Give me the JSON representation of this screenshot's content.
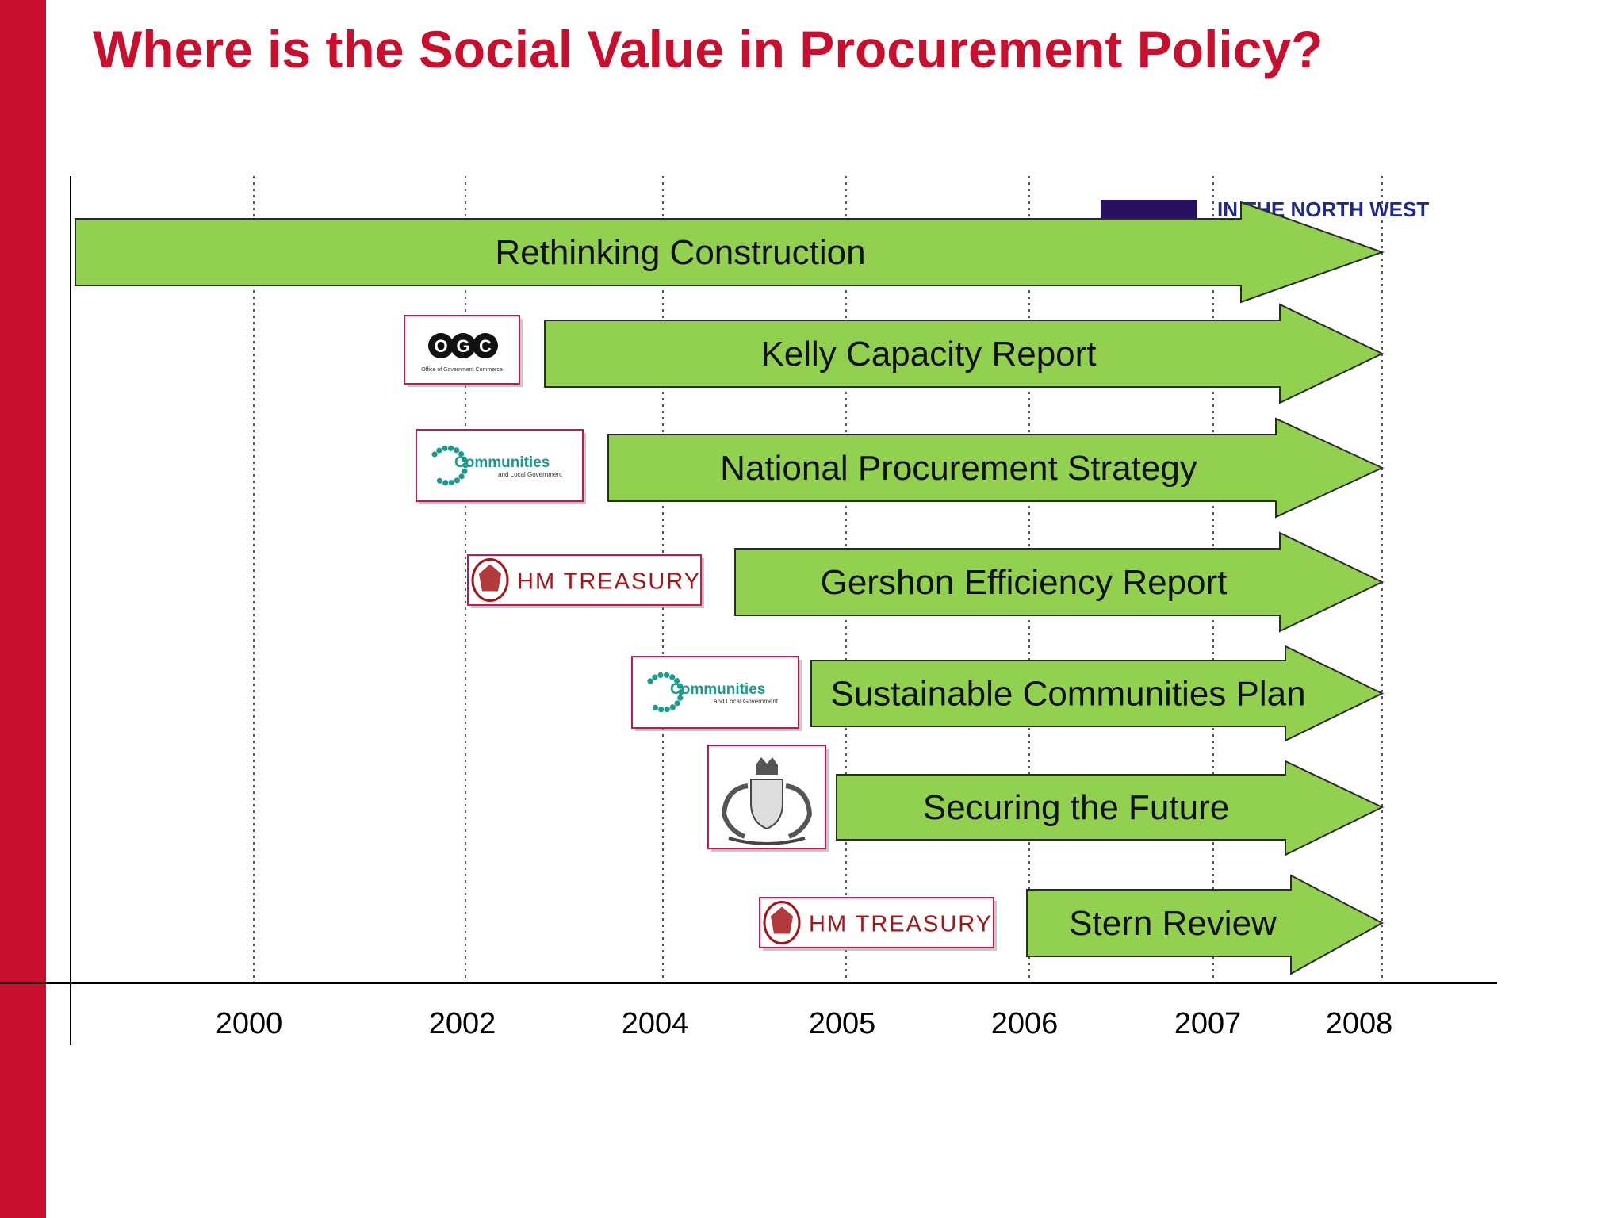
{
  "slide": {
    "title": "Where is the Social Value in Procurement Policy?",
    "accent_color": "#c8102e",
    "title_color": "#c8102e"
  },
  "colors": {
    "arrow_fill": "#92d050",
    "arrow_stroke": "#2b2b2b",
    "axis": "#000000",
    "gridline": "#555555",
    "logo_border": "#c2185b",
    "treasury_red": "#a4161a",
    "communities_teal": "#1a9c8c",
    "corner_logo_purple": "#2a1060",
    "corner_logo_blue": "#1f2a8c"
  },
  "axis": {
    "years": [
      "2000",
      "2002",
      "2004",
      "2005",
      "2006",
      "2007",
      "2008"
    ]
  },
  "corner_logo": {
    "text": "IN THE NORTH WEST"
  },
  "initiatives": [
    {
      "label": "Rethinking Construction",
      "logo": null
    },
    {
      "label": "Kelly Capacity Report",
      "logo": {
        "type": "ogc",
        "text": "OGC",
        "sub": "Office of Government Commerce"
      }
    },
    {
      "label": "National Procurement Strategy",
      "logo": {
        "type": "communities",
        "text": "Communities",
        "sub": "and Local Government"
      }
    },
    {
      "label": "Gershon Efficiency Report",
      "logo": {
        "type": "treasury",
        "text": "HM TREASURY"
      }
    },
    {
      "label": "Sustainable Communities Plan",
      "logo": {
        "type": "communities",
        "text": "Communities",
        "sub": "and Local Government"
      }
    },
    {
      "label": "Securing the Future",
      "logo": {
        "type": "royal-arms"
      }
    },
    {
      "label": "Stern Review",
      "logo": {
        "type": "treasury",
        "text": "HM TREASURY"
      }
    }
  ]
}
